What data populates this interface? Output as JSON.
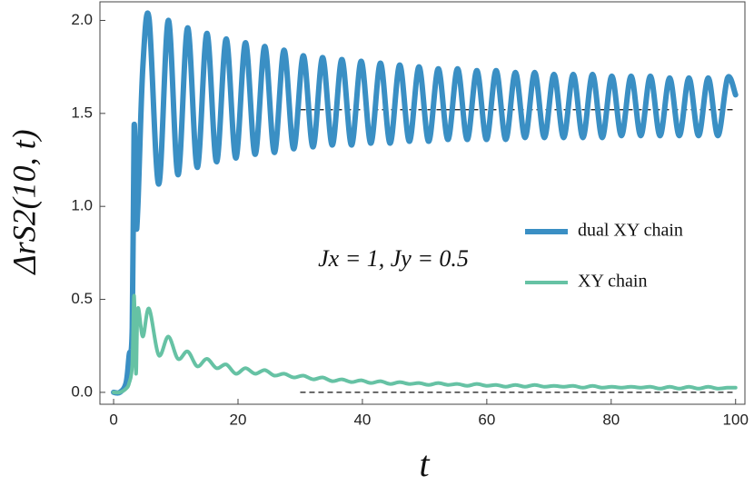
{
  "chart_data": {
    "type": "line",
    "x_label": "t",
    "y_label": "ΔrS2(10, t)",
    "annotation": "Jx = 1, Jy = 0.5",
    "x": [
      0,
      1,
      2,
      2.5,
      3,
      3.3,
      3.6,
      3.9,
      4.7,
      5.7,
      7.25,
      8.8,
      10.35,
      11.9,
      13.45,
      15,
      16.55,
      18.1,
      19.65,
      21.2,
      22.75,
      24.3,
      25.85,
      27.4,
      28.95,
      30.5,
      32.05,
      33.6,
      35.15,
      36.7,
      38.25,
      39.8,
      41.35,
      42.9,
      44.45,
      46,
      47.55,
      49.1,
      50.65,
      52.2,
      53.75,
      55.3,
      56.85,
      58.4,
      59.95,
      61.5,
      63.05,
      64.6,
      66.15,
      67.7,
      69.25,
      70.8,
      72.35,
      73.9,
      75.45,
      77,
      78.55,
      80.1,
      81.65,
      83.2,
      84.75,
      86.3,
      87.85,
      89.4,
      90.95,
      92.5,
      94.05,
      95.6,
      97.15,
      98.7,
      100
    ],
    "series": [
      {
        "name": "dual XY chain",
        "color": "#3a8fc4",
        "width": 6,
        "values": [
          0,
          0,
          0.05,
          0.2,
          0.35,
          1.43,
          0.92,
          1.0,
          1.75,
          2.01,
          1.12,
          2.0,
          1.17,
          1.96,
          1.21,
          1.93,
          1.24,
          1.9,
          1.26,
          1.88,
          1.28,
          1.86,
          1.29,
          1.84,
          1.31,
          1.81,
          1.32,
          1.8,
          1.33,
          1.79,
          1.33,
          1.78,
          1.34,
          1.77,
          1.34,
          1.76,
          1.35,
          1.75,
          1.35,
          1.74,
          1.36,
          1.74,
          1.36,
          1.73,
          1.36,
          1.73,
          1.36,
          1.72,
          1.37,
          1.72,
          1.37,
          1.71,
          1.37,
          1.71,
          1.37,
          1.71,
          1.37,
          1.7,
          1.38,
          1.7,
          1.38,
          1.7,
          1.38,
          1.69,
          1.38,
          1.69,
          1.38,
          1.69,
          1.38,
          1.69,
          1.6
        ]
      },
      {
        "name": "XY chain",
        "color": "#66c2a4",
        "width": 4,
        "values": [
          0,
          0,
          0.02,
          0.05,
          0.15,
          0.52,
          0.1,
          0.45,
          0.3,
          0.45,
          0.2,
          0.3,
          0.18,
          0.22,
          0.14,
          0.18,
          0.13,
          0.15,
          0.1,
          0.13,
          0.1,
          0.12,
          0.09,
          0.1,
          0.08,
          0.09,
          0.07,
          0.08,
          0.06,
          0.07,
          0.055,
          0.065,
          0.05,
          0.06,
          0.045,
          0.055,
          0.045,
          0.05,
          0.04,
          0.05,
          0.04,
          0.045,
          0.035,
          0.045,
          0.035,
          0.04,
          0.03,
          0.04,
          0.03,
          0.04,
          0.03,
          0.035,
          0.03,
          0.035,
          0.025,
          0.035,
          0.025,
          0.03,
          0.025,
          0.03,
          0.025,
          0.03,
          0.02,
          0.03,
          0.02,
          0.03,
          0.02,
          0.03,
          0.02,
          0.025,
          0.025
        ]
      }
    ],
    "reference_lines": [
      {
        "y": 1.52,
        "x": [
          30,
          100
        ]
      },
      {
        "y": 0,
        "x": [
          30,
          100
        ]
      }
    ],
    "xlim": [
      -2.2,
      101.5
    ],
    "ylim": [
      -0.064,
      2.1
    ],
    "xticks": [
      0,
      20,
      40,
      60,
      80,
      100
    ],
    "yticks": [
      {
        "value": 0,
        "label": "0.0"
      },
      0.5,
      {
        "value": 1,
        "label": "1.0"
      },
      1.5,
      {
        "value": 2,
        "label": "2.0"
      }
    ],
    "grid": false,
    "legend": "right"
  }
}
